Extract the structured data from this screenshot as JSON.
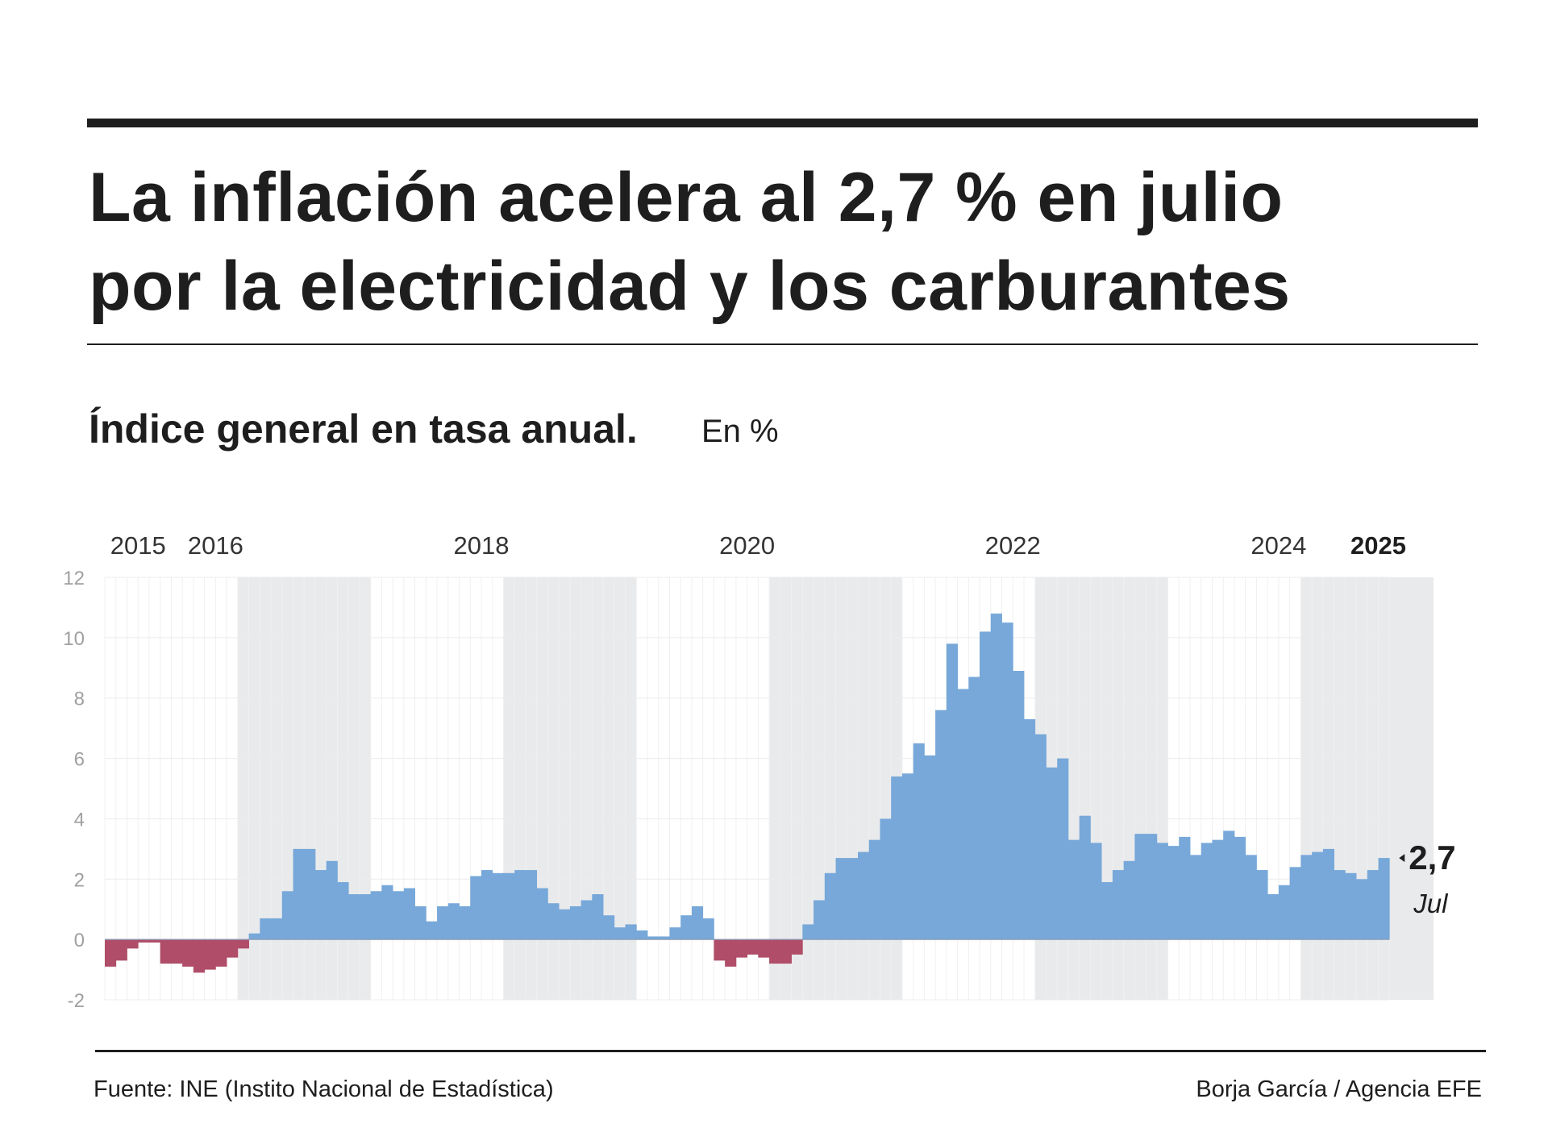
{
  "header": {
    "title": "La inflación acelera al 2,7 % en julio\npor la electricidad  y los carburantes"
  },
  "subtitle": {
    "main": "Índice general en tasa anual.",
    "unit": "En %"
  },
  "footer": {
    "source": "Fuente: INE (Instito Nacional de Estadística)",
    "credit": "Borja García / Agencia EFE"
  },
  "chart_data": {
    "type": "bar",
    "title": "",
    "xlabel": "",
    "ylabel": "",
    "ylim": [
      -2,
      12
    ],
    "yticks": [
      12,
      10,
      8,
      6,
      4,
      2,
      0,
      -2
    ],
    "grid": true,
    "start_month": "2015-01",
    "year_labels": [
      {
        "label": "2015",
        "month_index": 3,
        "bold": false
      },
      {
        "label": "2016",
        "month_index": 10,
        "bold": false
      },
      {
        "label": "2018",
        "month_index": 34,
        "bold": false
      },
      {
        "label": "2020",
        "month_index": 58,
        "bold": false
      },
      {
        "label": "2022",
        "month_index": 82,
        "bold": false
      },
      {
        "label": "2024",
        "month_index": 106,
        "bold": false
      },
      {
        "label": "2025",
        "month_index": 115,
        "bold": true
      }
    ],
    "shaded_years": [
      2016,
      2018,
      2020,
      2022,
      2024
    ],
    "colors": {
      "positive": "#77a8d9",
      "negative": "#b04d68",
      "shade": "#e9eaec",
      "axis_text": "#a0a0a0"
    },
    "last_value": {
      "value": "2,7",
      "month": "Jul"
    },
    "values": [
      -0.9,
      -0.7,
      -0.3,
      -0.1,
      -0.1,
      -0.8,
      -0.8,
      -0.9,
      -1.1,
      -1.0,
      -0.9,
      -0.6,
      -0.3,
      0.2,
      0.7,
      0.7,
      1.6,
      3.0,
      3.0,
      2.3,
      2.6,
      1.9,
      1.5,
      1.5,
      1.6,
      1.8,
      1.6,
      1.7,
      1.1,
      0.6,
      1.1,
      1.2,
      1.1,
      2.1,
      2.3,
      2.2,
      2.2,
      2.3,
      2.3,
      1.7,
      1.2,
      1.0,
      1.1,
      1.3,
      1.5,
      0.8,
      0.4,
      0.5,
      0.3,
      0.1,
      0.1,
      0.4,
      0.8,
      1.1,
      0.7,
      -0.7,
      -0.9,
      -0.6,
      -0.5,
      -0.6,
      -0.8,
      -0.8,
      -0.5,
      0.5,
      1.3,
      2.2,
      2.7,
      2.7,
      2.9,
      3.3,
      4.0,
      5.4,
      5.5,
      6.5,
      6.1,
      7.6,
      9.8,
      8.3,
      8.7,
      10.2,
      10.8,
      10.5,
      8.9,
      7.3,
      6.8,
      5.7,
      6.0,
      3.3,
      4.1,
      3.2,
      1.9,
      2.3,
      2.6,
      3.5,
      3.5,
      3.2,
      3.1,
      3.4,
      2.8,
      3.2,
      3.3,
      3.6,
      3.4,
      2.8,
      2.3,
      1.5,
      1.8,
      2.4,
      2.8,
      2.9,
      3.0,
      2.3,
      2.2,
      2.0,
      2.3,
      2.7
    ]
  }
}
